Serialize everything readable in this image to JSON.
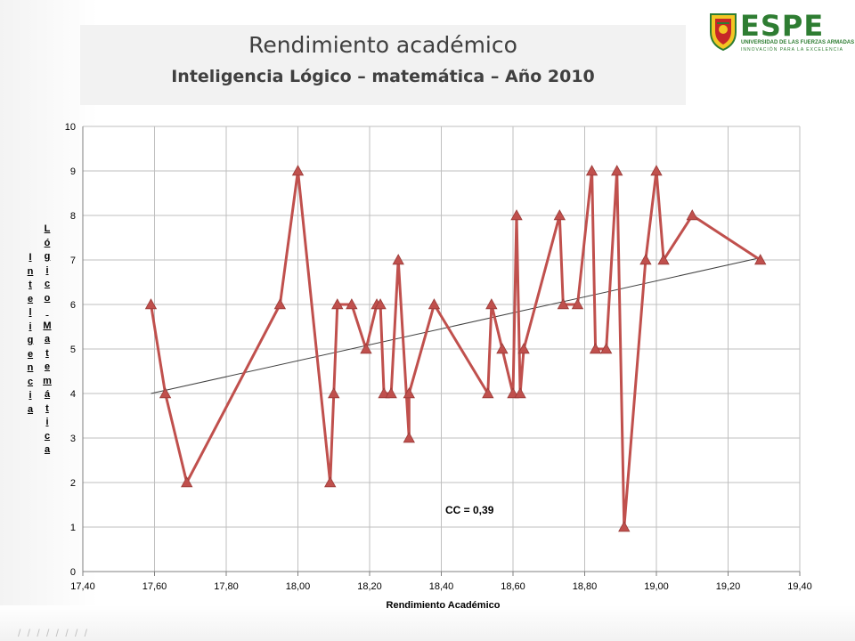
{
  "slide": {
    "title": "Rendimiento académico",
    "subtitle": "Inteligencia  Lógico – matemática – Año 2010",
    "logo_text": "ESPE",
    "logo_sub1": "UNIVERSIDAD DE LAS FUERZAS ARMADAS",
    "logo_sub2": "INNOVACIÓN PARA LA EXCELENCIA"
  },
  "chart_data": {
    "type": "line",
    "xlabel": "Rendimiento Académico",
    "ylabel_lines": [
      "Inteligencia",
      "Lógico Matemática"
    ],
    "xlim": [
      17.4,
      19.4
    ],
    "ylim": [
      0,
      10
    ],
    "x_ticks": [
      "17,40",
      "17,60",
      "17,80",
      "18,00",
      "18,20",
      "18,40",
      "18,60",
      "18,80",
      "19,00",
      "19,20",
      "19,40"
    ],
    "y_ticks": [
      "0",
      "1",
      "2",
      "3",
      "4",
      "5",
      "6",
      "7",
      "8",
      "9",
      "10"
    ],
    "grid": true,
    "legend": "none",
    "annotation": "CC = 0,39",
    "series_color": "#c0504d",
    "trendline_color": "#404040",
    "x": [
      17.59,
      17.63,
      17.69,
      17.95,
      18.0,
      18.09,
      18.1,
      18.11,
      18.15,
      18.19,
      18.22,
      18.23,
      18.24,
      18.26,
      18.28,
      18.31,
      18.31,
      18.38,
      18.53,
      18.54,
      18.57,
      18.6,
      18.61,
      18.62,
      18.63,
      18.73,
      18.74,
      18.78,
      18.82,
      18.83,
      18.86,
      18.89,
      18.91,
      18.97,
      19.0,
      19.02,
      19.1,
      19.29
    ],
    "y": [
      6,
      4,
      2,
      6,
      9,
      2,
      4,
      6,
      6,
      5,
      6,
      6,
      4,
      4,
      7,
      3,
      4,
      6,
      4,
      6,
      5,
      4,
      8,
      4,
      5,
      8,
      6,
      6,
      9,
      5,
      5,
      9,
      1,
      7,
      9,
      7,
      8,
      7
    ],
    "trendline": {
      "x": [
        17.59,
        19.29
      ],
      "y": [
        4.0,
        7.05
      ]
    }
  }
}
